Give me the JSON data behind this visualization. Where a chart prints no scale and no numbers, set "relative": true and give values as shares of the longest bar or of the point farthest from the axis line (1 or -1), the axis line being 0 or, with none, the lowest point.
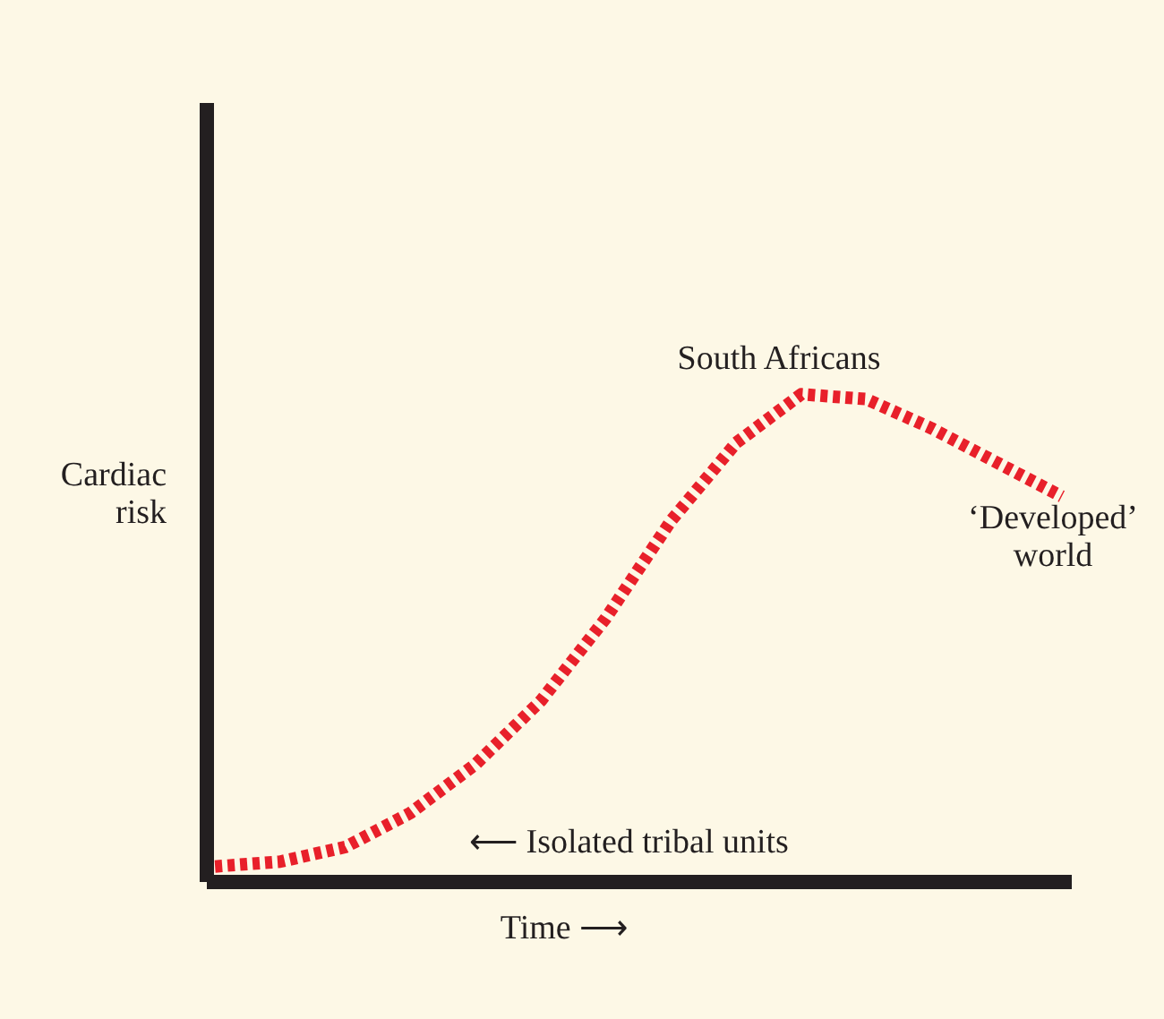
{
  "chart_data": {
    "type": "line",
    "relative": true,
    "xlabel": "Time ⟶",
    "ylabel": "Cardiac risk",
    "categories": [
      null,
      null,
      null,
      null,
      null,
      null,
      null,
      null,
      null,
      null,
      null,
      null,
      null,
      null
    ],
    "series": [
      {
        "color": "#e8202a",
        "values": [
          0.03,
          0.04,
          0.07,
          0.14,
          0.24,
          0.37,
          0.54,
          0.74,
          0.9,
          1.0,
          0.99,
          0.93,
          0.86,
          0.79
        ]
      }
    ],
    "annotations": [
      "South Africans",
      "‘Developed’ world",
      "⟵ Isolated tribal units"
    ],
    "line_style": "dashed",
    "marker": "none",
    "grid": false
  }
}
